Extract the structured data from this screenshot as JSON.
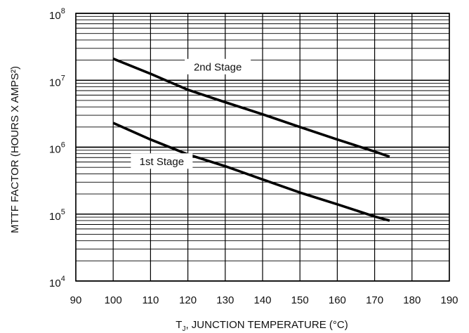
{
  "chart_data": {
    "type": "line",
    "title": "",
    "xlabel_main": "T",
    "xlabel_sub": "J",
    "xlabel_rest": ", JUNCTION TEMPERATURE (°C)",
    "ylabel": "MTTF FACTOR (HOURS X AMPS²)",
    "x_scale": "linear",
    "y_scale": "log",
    "xlim": [
      90,
      190
    ],
    "ylim": [
      10000,
      100000000
    ],
    "x_ticks": [
      "90",
      "100",
      "110",
      "120",
      "130",
      "140",
      "150",
      "160",
      "170",
      "180",
      "190"
    ],
    "y_ticks": [
      {
        "base": "10",
        "exp": "4"
      },
      {
        "base": "10",
        "exp": "5"
      },
      {
        "base": "10",
        "exp": "6"
      },
      {
        "base": "10",
        "exp": "7"
      },
      {
        "base": "10",
        "exp": "8"
      }
    ],
    "grid": true,
    "series": [
      {
        "name": "2nd Stage",
        "x": [
          100,
          110,
          120,
          130,
          140,
          150,
          160,
          170,
          174
        ],
        "values": [
          21000000,
          12500000,
          7200000,
          4700000,
          3100000,
          2000000,
          1300000,
          860000,
          720000
        ]
      },
      {
        "name": "1st Stage",
        "x": [
          100,
          110,
          120,
          130,
          140,
          150,
          160,
          170,
          174
        ],
        "values": [
          2300000,
          1300000,
          780000,
          520000,
          330000,
          210000,
          140000,
          92000,
          80000
        ]
      }
    ]
  }
}
